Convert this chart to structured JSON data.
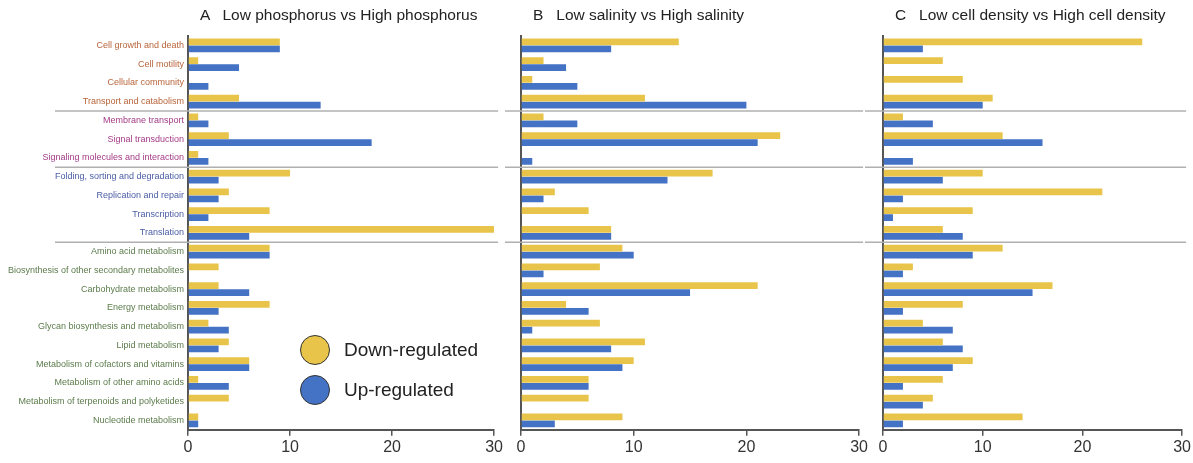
{
  "chart_data": [
    {
      "type": "bar",
      "orientation": "horizontal",
      "title": "A   Low phosphorus vs High phosphorus",
      "categories": [
        "Cell growth and death",
        "Cell motility",
        "Cellular community",
        "Transport and catabolism",
        "Membrane transport",
        "Signal transduction",
        "Signaling molecules and interaction",
        "Folding, sorting and degradation",
        "Replication and repair",
        "Transcription",
        "Translation",
        "Amino acid metabolism",
        "Biosynthesis of other secondary metabolites",
        "Carbohydrate metabolism",
        "Energy metabolism",
        "Glycan biosynthesis and metabolism",
        "Lipid metabolism",
        "Metabolism of cofactors and vitamins",
        "Metabolism of other amino acids",
        "Metabolism of terpenoids and polyketides",
        "Nucleotide metabolism"
      ],
      "series": [
        {
          "name": "Down-regulated",
          "color": "#e8c54a",
          "values": [
            9,
            1,
            0,
            5,
            1,
            4,
            1,
            10,
            4,
            8,
            30,
            8,
            3,
            3,
            8,
            2,
            4,
            6,
            1,
            4,
            1
          ]
        },
        {
          "name": "Up-regulated",
          "color": "#4472c4",
          "values": [
            9,
            5,
            2,
            13,
            2,
            18,
            2,
            3,
            3,
            2,
            6,
            8,
            0,
            6,
            3,
            4,
            3,
            6,
            4,
            0,
            1
          ]
        }
      ],
      "xlim": [
        0,
        30
      ],
      "xticks": [
        0,
        10,
        20,
        30
      ],
      "legend": "bottom right"
    },
    {
      "type": "bar",
      "orientation": "horizontal",
      "title": "B   Low salinity vs High salinity",
      "categories": [
        null,
        null,
        null,
        null,
        null,
        null,
        null,
        null,
        null,
        null,
        null,
        null,
        null,
        null,
        null,
        null,
        null,
        null,
        null,
        null,
        null
      ],
      "series": [
        {
          "color": "#e8c54a",
          "values": [
            14,
            2,
            1,
            11,
            2,
            23,
            0,
            17,
            3,
            6,
            8,
            9,
            7,
            21,
            4,
            7,
            11,
            10,
            6,
            6,
            9
          ]
        },
        {
          "color": "#4472c4",
          "values": [
            8,
            4,
            5,
            20,
            5,
            21,
            1,
            13,
            2,
            0,
            8,
            10,
            2,
            15,
            6,
            1,
            8,
            9,
            6,
            0,
            3
          ]
        }
      ],
      "xlim": [
        0,
        30
      ],
      "xticks": [
        0,
        10,
        20,
        30
      ],
      "tick_labels": "x"
    },
    {
      "type": "bar",
      "orientation": "horizontal",
      "title": "C   Low cell density vs High cell density",
      "categories": [
        null,
        null,
        null,
        null,
        null,
        null,
        null,
        null,
        null,
        null,
        null,
        null,
        null,
        null,
        null,
        null,
        null,
        null,
        null,
        null,
        null
      ],
      "series": [
        {
          "color": "#e8c54a",
          "values": [
            26,
            6,
            8,
            11,
            2,
            12,
            0,
            10,
            22,
            9,
            6,
            12,
            3,
            17,
            8,
            4,
            6,
            9,
            6,
            5,
            14
          ]
        },
        {
          "color": "#4472c4",
          "values": [
            4,
            0,
            0,
            10,
            5,
            16,
            3,
            6,
            2,
            1,
            8,
            9,
            2,
            15,
            2,
            7,
            8,
            7,
            2,
            4,
            2
          ]
        }
      ],
      "xlim": [
        0,
        30
      ],
      "xticks": [
        0,
        10,
        20,
        30
      ],
      "tick_labels": "x"
    }
  ]
}
